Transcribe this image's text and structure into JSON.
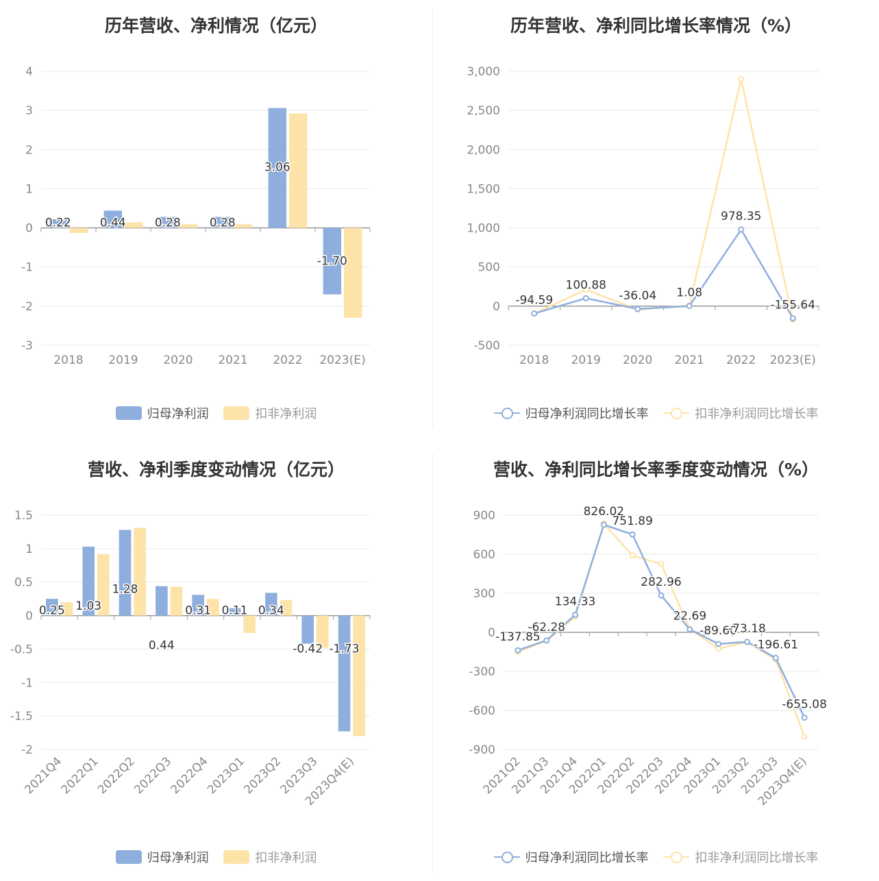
{
  "colors": {
    "blue": "#8eaedd",
    "yellow": "#fde3a7",
    "axis": "#999999",
    "grid": "#e6e8ef",
    "label": "#333333",
    "tick": "#888888"
  },
  "charts": [
    {
      "title": "历年营收、净利情况（亿元）",
      "legend": [
        "归母净利润",
        "扣非净利润"
      ]
    },
    {
      "title": "历年营收、净利同比增长率情况（%）",
      "legend": [
        "归母净利润同比增长率",
        "扣非净利润同比增长率"
      ]
    },
    {
      "title": "营收、净利季度变动情况（亿元）",
      "legend": [
        "归母净利润",
        "扣非净利润"
      ]
    },
    {
      "title": "营收、净利同比增长率季度变动情况（%）",
      "legend": [
        "归母净利润同比增长率",
        "扣非净利润同比增长率"
      ]
    }
  ],
  "chart_data": [
    {
      "type": "bar",
      "title": "历年营收、净利情况（亿元）",
      "categories": [
        "2018",
        "2019",
        "2020",
        "2021",
        "2022",
        "2023(E)"
      ],
      "series": [
        {
          "name": "归母净利润",
          "values": [
            0.22,
            0.44,
            0.28,
            0.28,
            3.06,
            -1.7
          ],
          "labels": [
            "0.22",
            "0.44",
            "0.28",
            "0.28",
            "3.06",
            "-1.70"
          ]
        },
        {
          "name": "扣非净利润",
          "values": [
            -0.13,
            0.14,
            0.09,
            0.09,
            2.92,
            -2.3
          ]
        }
      ],
      "ylim": [
        -3,
        4
      ],
      "yticks": [
        "-3",
        "-2",
        "-1",
        "0",
        "1",
        "2",
        "3",
        "4"
      ],
      "grid": true,
      "legend_position": "bottom"
    },
    {
      "type": "line",
      "title": "历年营收、净利同比增长率情况（%）",
      "categories": [
        "2018",
        "2019",
        "2020",
        "2021",
        "2022",
        "2023(E)"
      ],
      "series": [
        {
          "name": "归母净利润同比增长率",
          "values": [
            -94.59,
            100.88,
            -36.04,
            1.08,
            978.35,
            -155.64
          ],
          "labels": [
            "-94.59",
            "100.88",
            "-36.04",
            "1.08",
            "978.35",
            "-155.64"
          ]
        },
        {
          "name": "扣非净利润同比增长率",
          "values": [
            -94,
            210,
            -45,
            10,
            2900,
            -175
          ]
        }
      ],
      "ylim": [
        -500,
        3000
      ],
      "yticks": [
        "-500",
        "0",
        "500",
        "1,000",
        "1,500",
        "2,000",
        "2,500",
        "3,000"
      ],
      "grid": true,
      "legend_position": "bottom"
    },
    {
      "type": "bar",
      "title": "营收、净利季度变动情况（亿元）",
      "categories": [
        "2021Q4",
        "2022Q1",
        "2022Q2",
        "2022Q3",
        "2022Q4",
        "2023Q1",
        "2023Q2",
        "2023Q3",
        "2023Q4(E)"
      ],
      "series": [
        {
          "name": "归母净利润",
          "values": [
            0.25,
            1.03,
            1.28,
            0.44,
            0.31,
            0.11,
            0.34,
            -0.42,
            -1.73
          ],
          "labels": [
            "0.25",
            "1.03",
            "1.28",
            "0.44",
            "0.31",
            "0.11",
            "0.34",
            "-0.42",
            "-1.73"
          ]
        },
        {
          "name": "扣非净利润",
          "values": [
            0.2,
            0.92,
            1.31,
            0.43,
            0.25,
            -0.26,
            0.23,
            -0.48,
            -1.8
          ]
        }
      ],
      "ylim": [
        -2,
        1.5
      ],
      "yticks": [
        "-2",
        "-1.5",
        "-1",
        "-0.5",
        "0",
        "0.5",
        "1",
        "1.5"
      ],
      "grid": true,
      "legend_position": "bottom"
    },
    {
      "type": "line",
      "title": "营收、净利同比增长率季度变动情况（%）",
      "categories": [
        "2021Q2",
        "2021Q3",
        "2021Q4",
        "2022Q1",
        "2022Q2",
        "2022Q3",
        "2022Q4",
        "2023Q1",
        "2023Q2",
        "2023Q3",
        "2023Q4(E)"
      ],
      "series": [
        {
          "name": "归母净利润同比增长率",
          "values": [
            -137.85,
            -62.28,
            134.33,
            826.02,
            751.89,
            282.96,
            22.69,
            -89.6,
            -73.18,
            -196.61,
            -655.08
          ],
          "labels": [
            "-137.85",
            "-62.28",
            "134.33",
            "826.02",
            "751.89",
            "282.96",
            "22.69",
            "-89.60",
            "-73.18",
            "-196.61",
            "-655.08"
          ]
        },
        {
          "name": "扣非净利润同比增长率",
          "values": [
            -150,
            -65,
            120,
            835,
            590,
            525,
            25,
            -125,
            -75,
            -210,
            -800
          ]
        }
      ],
      "ylim": [
        -900,
        900
      ],
      "yticks": [
        "-900",
        "-600",
        "-300",
        "0",
        "300",
        "600",
        "900"
      ],
      "grid": true,
      "legend_position": "bottom"
    }
  ]
}
